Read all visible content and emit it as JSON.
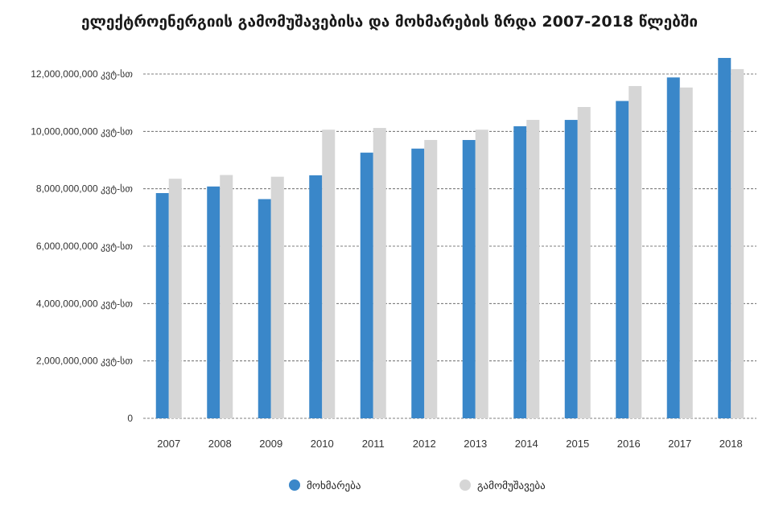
{
  "chart_data": {
    "type": "bar",
    "title": "ელექტროენერგიის გამომუშავებისა და მოხმარების ზრდა 2007-2018 წლებში",
    "categories": [
      "2007",
      "2008",
      "2009",
      "2010",
      "2011",
      "2012",
      "2013",
      "2014",
      "2015",
      "2016",
      "2017",
      "2018"
    ],
    "series": [
      {
        "name": "მოხმარება",
        "color": "#3a87c9",
        "values": [
          7850000000,
          8080000000,
          7640000000,
          8470000000,
          9260000000,
          9400000000,
          9700000000,
          10180000000,
          10400000000,
          11060000000,
          11880000000,
          12560000000
        ]
      },
      {
        "name": "გამომუშავება",
        "color": "#d6d6d6",
        "values": [
          8350000000,
          8480000000,
          8420000000,
          10060000000,
          10120000000,
          9700000000,
          10060000000,
          10400000000,
          10850000000,
          11580000000,
          11530000000,
          12170000000
        ]
      }
    ],
    "ylim": [
      0,
      12000000000
    ],
    "yticks": [
      0,
      2000000000,
      4000000000,
      6000000000,
      8000000000,
      10000000000,
      12000000000
    ],
    "ytick_labels": [
      "0",
      "2,000,000,000 კვტ-სთ",
      "4,000,000,000 კვტ-სთ",
      "6,000,000,000 კვტ-სთ",
      "8,000,000,000 კვტ-სთ",
      "10,000,000,000 კვტ-სთ",
      "12,000,000,000 კვტ-სთ"
    ],
    "grid": true,
    "legend_position": "bottom",
    "xlabel": "",
    "ylabel": ""
  }
}
